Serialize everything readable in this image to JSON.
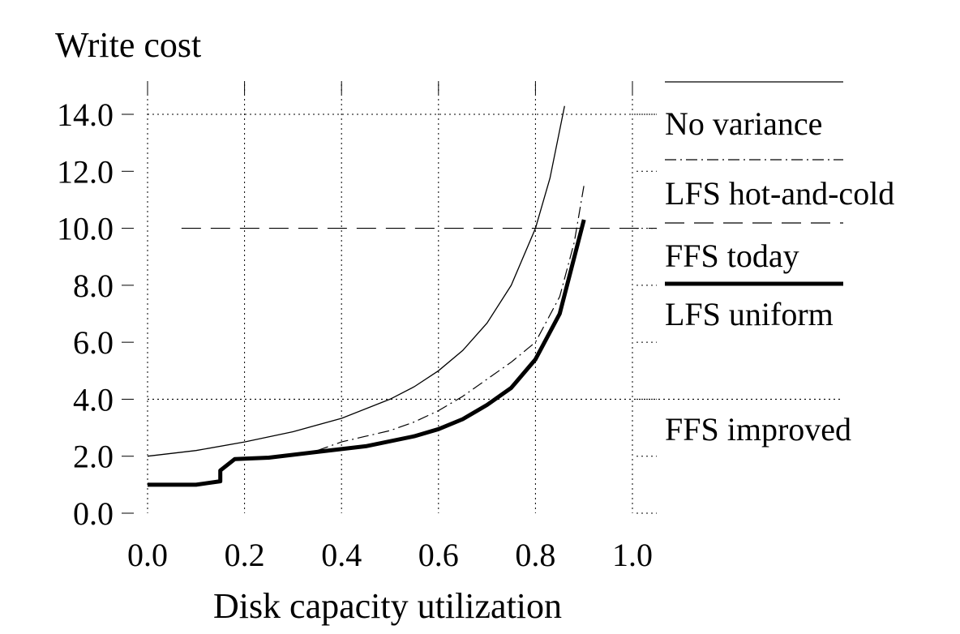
{
  "chart_data": {
    "type": "line",
    "ylabel": "Write cost",
    "xlabel": "Disk capacity utilization",
    "xlim": [
      0.0,
      1.0
    ],
    "ylim": [
      0.0,
      14.0
    ],
    "x_ticks": [
      0.0,
      0.2,
      0.4,
      0.6,
      0.8,
      1.0
    ],
    "x_tick_labels": [
      "0.0",
      "0.2",
      "0.4",
      "0.6",
      "0.8",
      "1.0"
    ],
    "y_ticks": [
      0.0,
      2.0,
      4.0,
      6.0,
      8.0,
      10.0,
      12.0,
      14.0
    ],
    "y_tick_labels": [
      "0.0",
      "2.0",
      "4.0",
      "6.0",
      "8.0",
      "10.0",
      "12.0",
      "14.0"
    ],
    "grid": "dotted at y=4.0 and y=14.0 and at major x ticks",
    "legend_position": "right",
    "series": [
      {
        "name": "No variance",
        "style": "thin-solid",
        "x": [
          0.0,
          0.1,
          0.2,
          0.3,
          0.4,
          0.5,
          0.55,
          0.6,
          0.65,
          0.7,
          0.75,
          0.8,
          0.83,
          0.86
        ],
        "y": [
          2.0,
          2.2,
          2.5,
          2.86,
          3.33,
          4.0,
          4.44,
          5.0,
          5.71,
          6.67,
          8.0,
          10.0,
          11.76,
          14.29
        ]
      },
      {
        "name": "LFS hot-and-cold",
        "style": "dash-dot",
        "x": [
          0.35,
          0.4,
          0.45,
          0.5,
          0.55,
          0.6,
          0.65,
          0.7,
          0.75,
          0.8,
          0.85,
          0.88,
          0.9
        ],
        "y": [
          2.2,
          2.5,
          2.7,
          2.9,
          3.2,
          3.6,
          4.1,
          4.7,
          5.3,
          6.0,
          7.6,
          9.5,
          11.5
        ]
      },
      {
        "name": "FFS today",
        "style": "dashed-constant",
        "x": [
          0.07,
          1.0
        ],
        "y": [
          10.0,
          10.0
        ]
      },
      {
        "name": "LFS uniform",
        "style": "thick-solid",
        "x": [
          0.0,
          0.1,
          0.15,
          0.15,
          0.18,
          0.25,
          0.35,
          0.45,
          0.55,
          0.6,
          0.65,
          0.7,
          0.75,
          0.8,
          0.85,
          0.9
        ],
        "y": [
          1.0,
          1.0,
          1.12,
          1.5,
          1.9,
          1.95,
          2.15,
          2.35,
          2.7,
          2.95,
          3.3,
          3.8,
          4.4,
          5.4,
          7.0,
          10.3
        ]
      },
      {
        "name": "FFS improved",
        "style": "dotted-constant",
        "x": [
          0.0,
          1.0
        ],
        "y": [
          4.0,
          4.0
        ]
      }
    ]
  }
}
